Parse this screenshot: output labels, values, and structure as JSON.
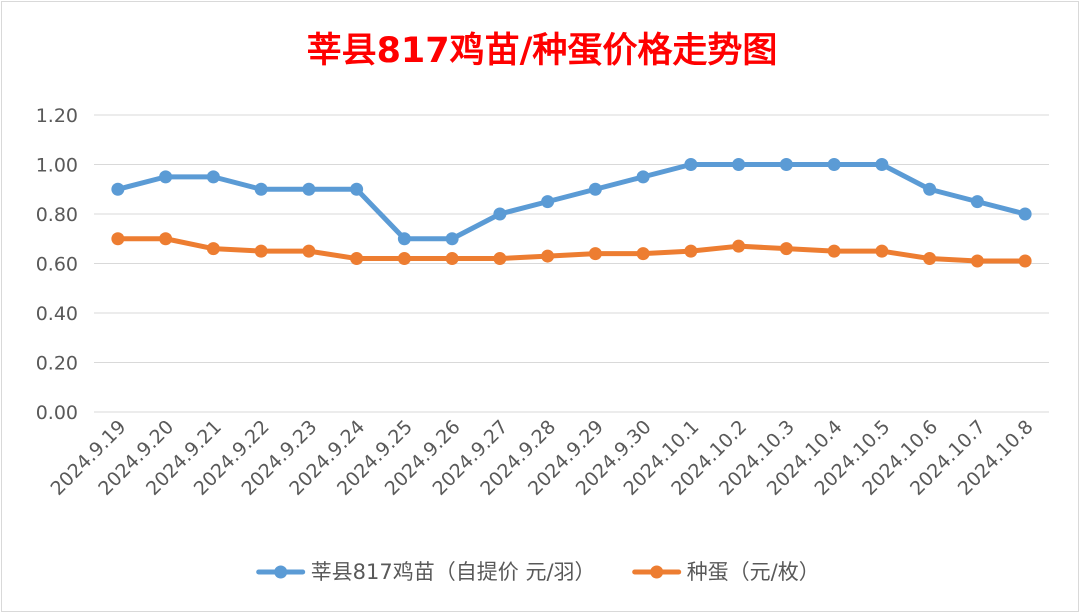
{
  "chart_data": {
    "type": "line",
    "title": "莘县817鸡苗/种蛋价格走势图",
    "x": [
      "2024.9.19",
      "2024.9.20",
      "2024.9.21",
      "2024.9.22",
      "2024.9.23",
      "2024.9.24",
      "2024.9.25",
      "2024.9.26",
      "2024.9.27",
      "2024.9.28",
      "2024.9.29",
      "2024.9.30",
      "2024.10.1",
      "2024.10.2",
      "2024.10.3",
      "2024.10.4",
      "2024.10.5",
      "2024.10.6",
      "2024.10.7",
      "2024.10.8"
    ],
    "y_ticks": [
      "0.00",
      "0.20",
      "0.40",
      "0.60",
      "0.80",
      "1.00",
      "1.20"
    ],
    "ylim": [
      0,
      1.2
    ],
    "grid": true,
    "legend_position": "bottom",
    "series": [
      {
        "name": "莘县817鸡苗（自提价 元/羽）",
        "color": "#5b9bd5",
        "values": [
          0.9,
          0.95,
          0.95,
          0.9,
          0.9,
          0.9,
          0.7,
          0.7,
          0.8,
          0.85,
          0.9,
          0.95,
          1.0,
          1.0,
          1.0,
          1.0,
          1.0,
          0.9,
          0.85,
          0.8
        ]
      },
      {
        "name": "种蛋（元/枚）",
        "color": "#ed7d31",
        "values": [
          0.7,
          0.7,
          0.66,
          0.65,
          0.65,
          0.62,
          0.62,
          0.62,
          0.62,
          0.63,
          0.64,
          0.64,
          0.65,
          0.67,
          0.66,
          0.65,
          0.65,
          0.62,
          0.61,
          0.61
        ]
      }
    ],
    "title_color": "#ff0000"
  }
}
